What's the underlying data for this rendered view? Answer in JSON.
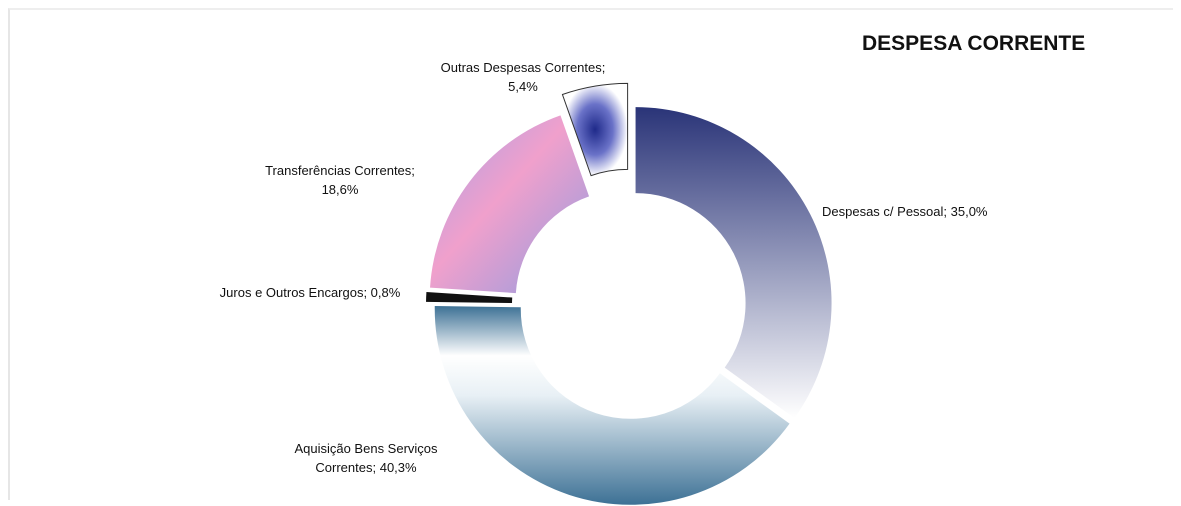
{
  "chart_data": {
    "type": "pie",
    "variant": "exploded-donut",
    "title": "DESPESA CORRENTE",
    "slices": [
      {
        "name": "Despesas c/ Pessoal",
        "value": 35.0,
        "label": "Despesas c/ Pessoal; 35,0%",
        "color_dark": "#2a3478",
        "color_light": "#ffffff"
      },
      {
        "name": "Aquisição Bens Serviços Correntes",
        "value": 40.3,
        "label": "Aquisição Bens Serviços Correntes; 40,3%",
        "color_dark": "#3d7195",
        "color_light": "#ffffff"
      },
      {
        "name": "Juros e Outros Encargos",
        "value": 0.8,
        "label": "Juros e Outros Encargos; 0,8%",
        "color_dark": "#111111",
        "color_light": "#111111"
      },
      {
        "name": "Transferências Correntes",
        "value": 18.6,
        "label": "Transferências Correntes; 18,6%",
        "color_dark": "#8f9be0",
        "color_light": "#f0a0cc"
      },
      {
        "name": "Outras Despesas Correntes",
        "value": 5.4,
        "label": "Outras Despesas Correntes; 5,4%",
        "color_dark": "#303c9a",
        "color_light": "#ffffff"
      }
    ],
    "label_lines": [
      [
        "Despesas c/ Pessoal; 35,0%"
      ],
      [
        "Aquisição Bens Serviços",
        "Correntes; 40,3%"
      ],
      [
        "Juros e Outros Encargos; 0,8%"
      ],
      [
        "Transferências Correntes;",
        "18,6%"
      ],
      [
        "Outras Despesas Correntes;",
        "5,4%"
      ]
    ]
  }
}
